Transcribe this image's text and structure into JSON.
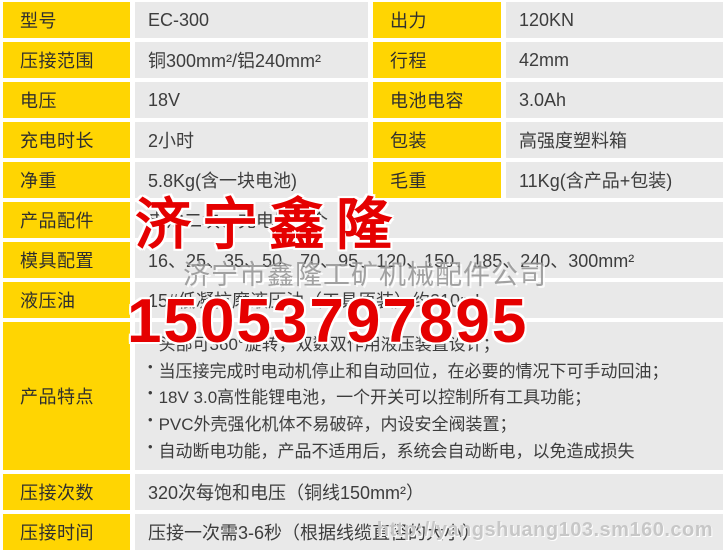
{
  "colors": {
    "label_bg": "#ffd502",
    "value_bg": "#e9e9e9",
    "label_text": "#2f2f2f",
    "value_text": "#3d3d3d",
    "watermark_red": "#e50000",
    "watermark_gray": "#949494",
    "watermark_url_gray": "#c6c6c6"
  },
  "spec_table": {
    "rows4": [
      {
        "l1": "型号",
        "v1": "EC-300",
        "l2": "出力",
        "v2": "120KN"
      },
      {
        "l1": "压接范围",
        "v1": "铜300mm²/铝240mm²",
        "l2": "行程",
        "v2": "42mm"
      },
      {
        "l1": "电压",
        "v1": "18V",
        "l2": "电池电容",
        "v2": "3.0Ah"
      },
      {
        "l1": "充电时长",
        "v1": "2小时",
        "l2": "包装",
        "v2": "高强度塑料箱"
      },
      {
        "l1": "净重",
        "v1": "5.8Kg(含一块电池)",
        "l2": "毛重",
        "v2": "11Kg(含产品+包装)"
      }
    ],
    "rows2": [
      {
        "label": "产品配件",
        "value": "电池二块、充电器一个"
      },
      {
        "label": "模具配置",
        "value": "16、25、35、50、70、95、120、150、185、240、300mm²"
      },
      {
        "label": "液压油",
        "value": "15#低凝抗磨液压油（工具原装）约210mL"
      }
    ],
    "features": {
      "label": "产品特点",
      "bullet": "•",
      "items": [
        "头部可360°旋转，双数双作用液压装置设计；",
        "当压接完成时电动机停止和自动回位，在必要的情况下可手动回油；",
        "18V 3.0高性能锂电池，一个开关可以控制所有工具功能；",
        "PVC外壳强化机体不易破碎，内设安全阀装置；",
        "自动断电功能，产品不适用后，系统会自动断电，以免造成损失"
      ]
    },
    "rows_bottom": [
      {
        "label": "压接次数",
        "value": "320次每饱和电压（铜线150mm²）"
      },
      {
        "label": "压接时间",
        "value": "压接一次需3-6秒（根据线缆直径的大小）"
      }
    ]
  },
  "watermarks": {
    "brand": "济宁鑫隆",
    "company": "济宁市鑫隆工矿机械配件公司",
    "phone": "15053797895",
    "url": "http://yangshuang103.sm160.com"
  }
}
